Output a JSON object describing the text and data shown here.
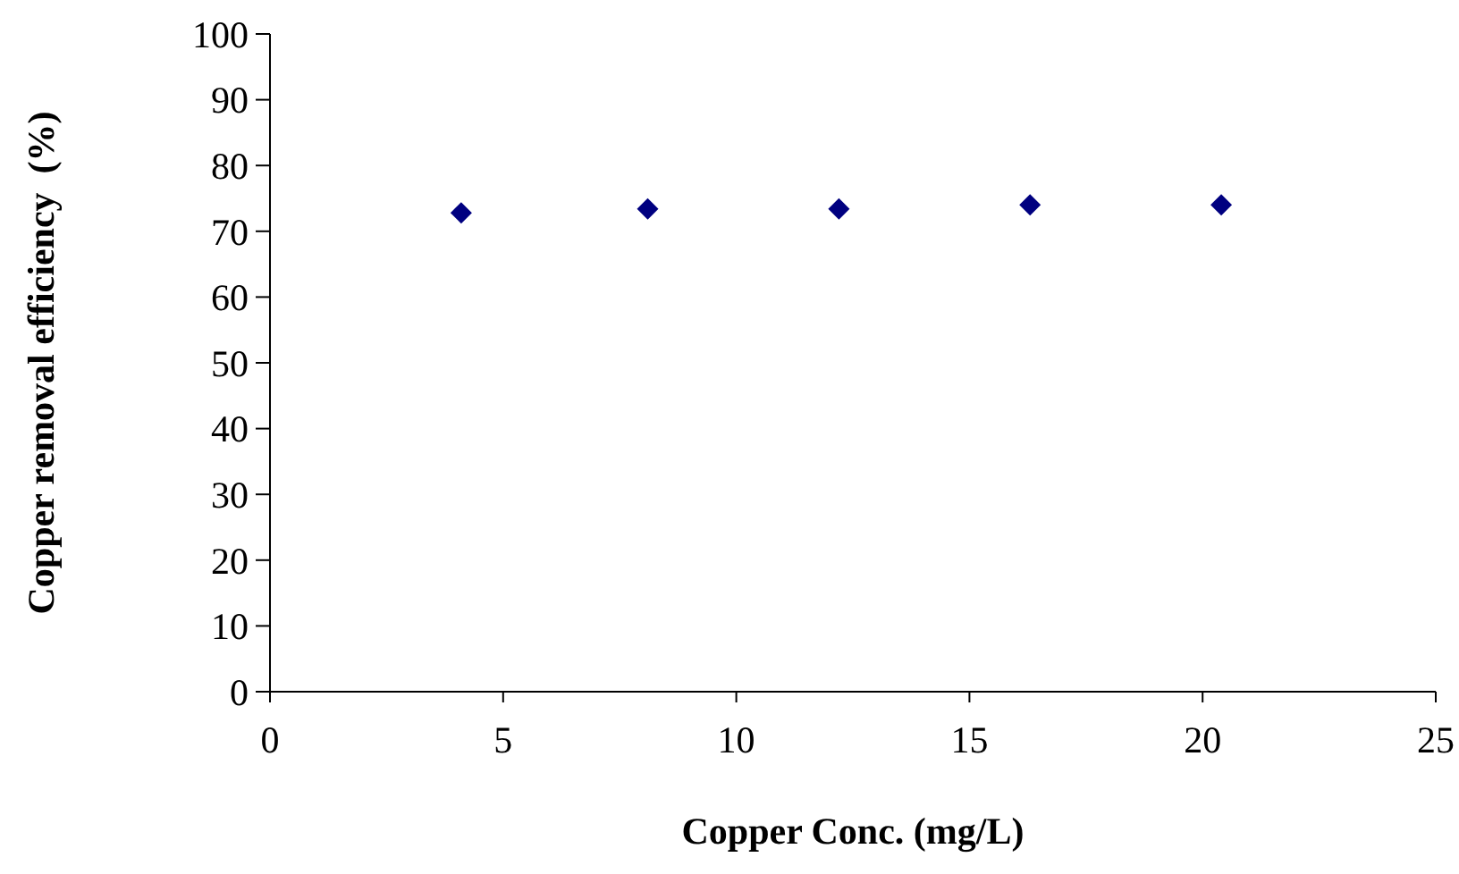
{
  "chart_data": {
    "type": "scatter",
    "xlabel": "Copper Conc. (mg/L)",
    "ylabel": "Copper removal efficiency  (%)",
    "x": [
      4.1,
      8.1,
      12.2,
      16.3,
      20.4
    ],
    "series": [
      {
        "color": "#000080",
        "values": [
          72.8,
          73.4,
          73.4,
          74.0,
          74.0
        ]
      }
    ],
    "xlim": [
      0,
      25
    ],
    "xticks": [
      0,
      5,
      10,
      15,
      20,
      25
    ],
    "ylim": [
      0,
      100
    ],
    "yticks": [
      0,
      10,
      20,
      30,
      40,
      50,
      60,
      70,
      80,
      90,
      100
    ],
    "marker": "diamond"
  }
}
